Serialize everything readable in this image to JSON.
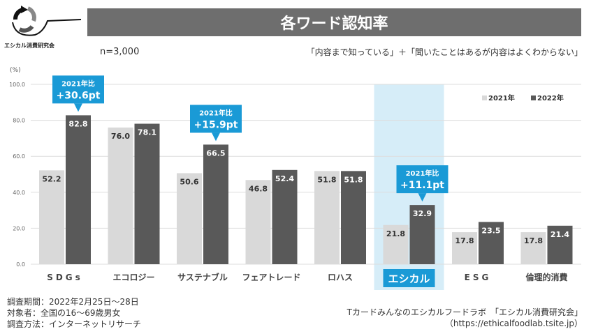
{
  "header": {
    "title": "各ワード認知率",
    "logo_text": "エシカル消費研究会",
    "sample": "n=3,000",
    "definition": "「内容まで知っている」＋「聞いたことはあるが内容はよくわからない」"
  },
  "footer": {
    "notes": [
      "調査期間：2022年2月25日～28日",
      "対象者：全国の16～69歳男女",
      "調査方法：インターネットリサーチ"
    ],
    "source": [
      "Tカードみんなのエシカルフードラボ　「エシカル消費研究会」",
      "（https://ethicalfoodlab.tsite.jp）"
    ]
  },
  "chart_data": {
    "type": "bar",
    "title": "各ワード認知率",
    "ylabel": "(%)",
    "ylim": [
      0,
      100
    ],
    "yticks": [
      "0.0",
      "20.0",
      "40.0",
      "60.0",
      "80.0",
      "100.0"
    ],
    "grid": true,
    "legend_placement": "top-right",
    "categories": [
      "SDGs",
      "エコロジー",
      "サステナブル",
      "フェアトレード",
      "ロハス",
      "エシカル",
      "ESG",
      "倫理的消費"
    ],
    "highlight_category": "エシカル",
    "series": [
      {
        "name": "2021年",
        "color": "#d9d9d9",
        "values": [
          52.2,
          76.0,
          50.6,
          46.8,
          51.8,
          21.8,
          17.8,
          17.8
        ],
        "labels": [
          "52.2",
          "76.0",
          "50.6",
          "46.8",
          "51.8",
          "21.8",
          "17.8",
          "17.8"
        ]
      },
      {
        "name": "2022年",
        "color": "#595959",
        "values": [
          82.8,
          78.1,
          66.5,
          52.4,
          51.8,
          32.9,
          23.5,
          21.4
        ],
        "labels": [
          "82.8",
          "78.1",
          "66.5",
          "52.4",
          "51.8",
          "32.9",
          "23.5",
          "21.4"
        ]
      }
    ],
    "annotations": [
      {
        "category": "SDGs",
        "line1": "2021年比",
        "line2": "+30.6pt"
      },
      {
        "category": "サステナブル",
        "line1": "2021年比",
        "line2": "+15.9pt"
      },
      {
        "category": "エシカル",
        "line1": "2021年比",
        "line2": "+11.1pt"
      }
    ],
    "colors": {
      "accent": "#1a9ad6",
      "highlight_bg": "#d6edf8"
    }
  }
}
